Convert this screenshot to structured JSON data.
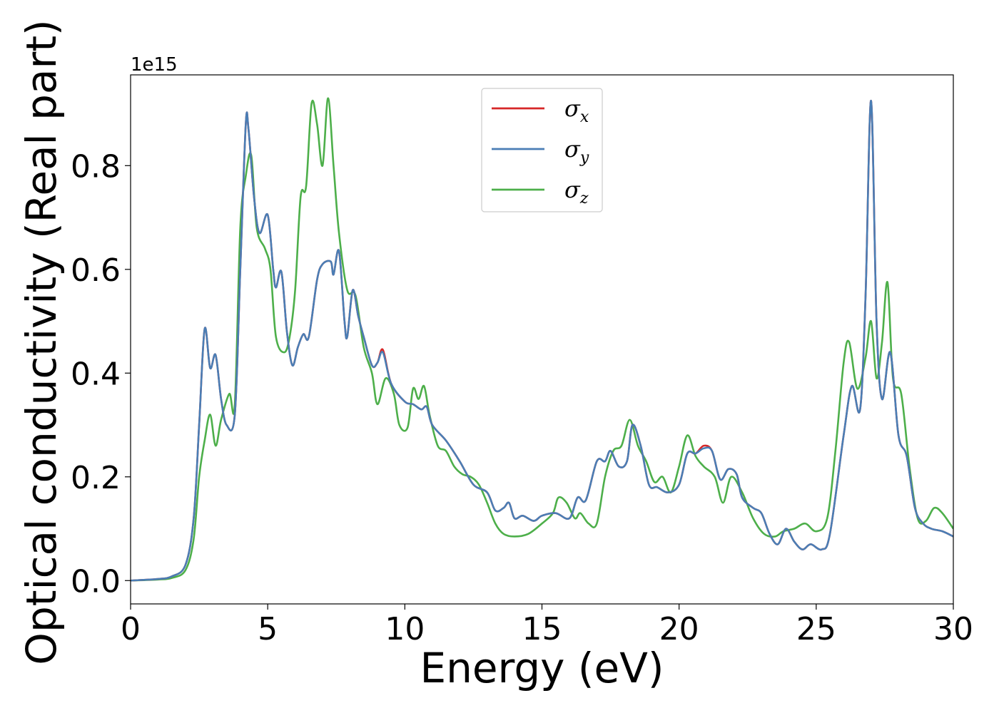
{
  "chart_data": {
    "type": "line",
    "xlabel": "Energy (eV)",
    "ylabel": "Optical conductivity (Real part)",
    "y_offset_text": "1e15",
    "xlim": [
      0,
      30
    ],
    "ylim": [
      -0.045,
      0.975
    ],
    "xticks": [
      0,
      5,
      10,
      15,
      20,
      25,
      30
    ],
    "xtick_labels": [
      "0",
      "5",
      "10",
      "15",
      "20",
      "25",
      "30"
    ],
    "yticks": [
      0.0,
      0.2,
      0.4,
      0.6,
      0.8
    ],
    "ytick_labels": [
      "0.0",
      "0.2",
      "0.4",
      "0.6",
      "0.8"
    ],
    "grid": false,
    "legend_position": "top-center",
    "series": [
      {
        "name": "σx",
        "legend_symbol": "σ",
        "legend_subscript": "x",
        "color": "#d62728",
        "points": [
          [
            0,
            0.0
          ],
          [
            1,
            0.003
          ],
          [
            1.5,
            0.008
          ],
          [
            2,
            0.03
          ],
          [
            2.3,
            0.12
          ],
          [
            2.5,
            0.3
          ],
          [
            2.7,
            0.485
          ],
          [
            2.9,
            0.41
          ],
          [
            3.1,
            0.435
          ],
          [
            3.3,
            0.35
          ],
          [
            3.5,
            0.3
          ],
          [
            3.8,
            0.32
          ],
          [
            4.0,
            0.6
          ],
          [
            4.2,
            0.88
          ],
          [
            4.3,
            0.87
          ],
          [
            4.5,
            0.74
          ],
          [
            4.7,
            0.67
          ],
          [
            5.0,
            0.705
          ],
          [
            5.2,
            0.6
          ],
          [
            5.3,
            0.565
          ],
          [
            5.5,
            0.595
          ],
          [
            5.7,
            0.48
          ],
          [
            5.9,
            0.415
          ],
          [
            6.1,
            0.45
          ],
          [
            6.3,
            0.475
          ],
          [
            6.5,
            0.47
          ],
          [
            6.8,
            0.58
          ],
          [
            7.0,
            0.61
          ],
          [
            7.3,
            0.615
          ],
          [
            7.4,
            0.59
          ],
          [
            7.6,
            0.635
          ],
          [
            7.8,
            0.5
          ],
          [
            7.9,
            0.47
          ],
          [
            8.1,
            0.56
          ],
          [
            8.3,
            0.51
          ],
          [
            8.5,
            0.47
          ],
          [
            8.8,
            0.415
          ],
          [
            9.0,
            0.42
          ],
          [
            9.2,
            0.445
          ],
          [
            9.5,
            0.38
          ],
          [
            10.0,
            0.345
          ],
          [
            10.3,
            0.34
          ],
          [
            10.6,
            0.33
          ],
          [
            10.8,
            0.335
          ],
          [
            11.0,
            0.3
          ],
          [
            11.5,
            0.27
          ],
          [
            12.0,
            0.23
          ],
          [
            12.5,
            0.185
          ],
          [
            13.0,
            0.17
          ],
          [
            13.3,
            0.135
          ],
          [
            13.6,
            0.14
          ],
          [
            13.8,
            0.15
          ],
          [
            14.0,
            0.12
          ],
          [
            14.3,
            0.125
          ],
          [
            14.7,
            0.115
          ],
          [
            15.0,
            0.125
          ],
          [
            15.5,
            0.13
          ],
          [
            16.0,
            0.12
          ],
          [
            16.3,
            0.16
          ],
          [
            16.6,
            0.155
          ],
          [
            17.0,
            0.23
          ],
          [
            17.3,
            0.23
          ],
          [
            17.5,
            0.25
          ],
          [
            17.8,
            0.22
          ],
          [
            18.1,
            0.23
          ],
          [
            18.3,
            0.3
          ],
          [
            18.6,
            0.26
          ],
          [
            18.9,
            0.185
          ],
          [
            19.2,
            0.18
          ],
          [
            19.6,
            0.17
          ],
          [
            20.0,
            0.185
          ],
          [
            20.3,
            0.245
          ],
          [
            20.6,
            0.245
          ],
          [
            20.9,
            0.26
          ],
          [
            21.2,
            0.25
          ],
          [
            21.5,
            0.195
          ],
          [
            21.8,
            0.215
          ],
          [
            22.1,
            0.205
          ],
          [
            22.3,
            0.16
          ],
          [
            22.7,
            0.14
          ],
          [
            23.0,
            0.13
          ],
          [
            23.3,
            0.09
          ],
          [
            23.6,
            0.07
          ],
          [
            23.9,
            0.1
          ],
          [
            24.2,
            0.075
          ],
          [
            24.5,
            0.06
          ],
          [
            24.8,
            0.07
          ],
          [
            25.2,
            0.06
          ],
          [
            25.5,
            0.09
          ],
          [
            26.0,
            0.28
          ],
          [
            26.3,
            0.375
          ],
          [
            26.6,
            0.33
          ],
          [
            26.8,
            0.55
          ],
          [
            27.0,
            0.925
          ],
          [
            27.2,
            0.5
          ],
          [
            27.4,
            0.35
          ],
          [
            27.7,
            0.44
          ],
          [
            28.0,
            0.28
          ],
          [
            28.3,
            0.24
          ],
          [
            28.6,
            0.14
          ],
          [
            28.9,
            0.11
          ],
          [
            29.2,
            0.1
          ],
          [
            29.6,
            0.095
          ],
          [
            30.0,
            0.085
          ]
        ]
      },
      {
        "name": "σy",
        "legend_symbol": "σ",
        "legend_subscript": "y",
        "color": "#4a7eb5",
        "points": [
          [
            0,
            0.0
          ],
          [
            1,
            0.003
          ],
          [
            1.5,
            0.008
          ],
          [
            2,
            0.03
          ],
          [
            2.3,
            0.12
          ],
          [
            2.5,
            0.3
          ],
          [
            2.7,
            0.485
          ],
          [
            2.9,
            0.41
          ],
          [
            3.1,
            0.435
          ],
          [
            3.3,
            0.35
          ],
          [
            3.5,
            0.3
          ],
          [
            3.8,
            0.32
          ],
          [
            4.0,
            0.6
          ],
          [
            4.2,
            0.88
          ],
          [
            4.3,
            0.87
          ],
          [
            4.5,
            0.74
          ],
          [
            4.7,
            0.67
          ],
          [
            5.0,
            0.705
          ],
          [
            5.2,
            0.6
          ],
          [
            5.3,
            0.565
          ],
          [
            5.5,
            0.595
          ],
          [
            5.7,
            0.48
          ],
          [
            5.9,
            0.415
          ],
          [
            6.1,
            0.45
          ],
          [
            6.3,
            0.475
          ],
          [
            6.5,
            0.47
          ],
          [
            6.8,
            0.58
          ],
          [
            7.0,
            0.61
          ],
          [
            7.3,
            0.615
          ],
          [
            7.4,
            0.59
          ],
          [
            7.6,
            0.635
          ],
          [
            7.8,
            0.5
          ],
          [
            7.9,
            0.47
          ],
          [
            8.1,
            0.56
          ],
          [
            8.3,
            0.51
          ],
          [
            8.5,
            0.47
          ],
          [
            8.8,
            0.415
          ],
          [
            9.0,
            0.42
          ],
          [
            9.2,
            0.44
          ],
          [
            9.5,
            0.38
          ],
          [
            10.0,
            0.345
          ],
          [
            10.3,
            0.34
          ],
          [
            10.6,
            0.33
          ],
          [
            10.8,
            0.335
          ],
          [
            11.0,
            0.3
          ],
          [
            11.5,
            0.27
          ],
          [
            12.0,
            0.23
          ],
          [
            12.5,
            0.185
          ],
          [
            13.0,
            0.17
          ],
          [
            13.3,
            0.135
          ],
          [
            13.6,
            0.14
          ],
          [
            13.8,
            0.15
          ],
          [
            14.0,
            0.12
          ],
          [
            14.3,
            0.125
          ],
          [
            14.7,
            0.115
          ],
          [
            15.0,
            0.125
          ],
          [
            15.5,
            0.13
          ],
          [
            16.0,
            0.12
          ],
          [
            16.3,
            0.16
          ],
          [
            16.6,
            0.155
          ],
          [
            17.0,
            0.23
          ],
          [
            17.3,
            0.23
          ],
          [
            17.5,
            0.25
          ],
          [
            17.8,
            0.22
          ],
          [
            18.1,
            0.23
          ],
          [
            18.3,
            0.3
          ],
          [
            18.6,
            0.26
          ],
          [
            18.9,
            0.185
          ],
          [
            19.2,
            0.18
          ],
          [
            19.6,
            0.17
          ],
          [
            20.0,
            0.185
          ],
          [
            20.3,
            0.245
          ],
          [
            20.6,
            0.245
          ],
          [
            20.9,
            0.255
          ],
          [
            21.2,
            0.25
          ],
          [
            21.5,
            0.195
          ],
          [
            21.8,
            0.215
          ],
          [
            22.1,
            0.205
          ],
          [
            22.3,
            0.16
          ],
          [
            22.7,
            0.14
          ],
          [
            23.0,
            0.13
          ],
          [
            23.3,
            0.09
          ],
          [
            23.6,
            0.07
          ],
          [
            23.9,
            0.1
          ],
          [
            24.2,
            0.075
          ],
          [
            24.5,
            0.06
          ],
          [
            24.8,
            0.07
          ],
          [
            25.2,
            0.06
          ],
          [
            25.5,
            0.09
          ],
          [
            26.0,
            0.28
          ],
          [
            26.3,
            0.375
          ],
          [
            26.6,
            0.33
          ],
          [
            26.8,
            0.55
          ],
          [
            27.0,
            0.925
          ],
          [
            27.2,
            0.5
          ],
          [
            27.4,
            0.35
          ],
          [
            27.7,
            0.44
          ],
          [
            28.0,
            0.28
          ],
          [
            28.3,
            0.24
          ],
          [
            28.6,
            0.14
          ],
          [
            28.9,
            0.11
          ],
          [
            29.2,
            0.1
          ],
          [
            29.6,
            0.095
          ],
          [
            30.0,
            0.085
          ]
        ]
      },
      {
        "name": "σz",
        "legend_symbol": "σ",
        "legend_subscript": "z",
        "color": "#4daf4a",
        "points": [
          [
            0,
            0.0
          ],
          [
            1,
            0.002
          ],
          [
            1.5,
            0.005
          ],
          [
            2,
            0.02
          ],
          [
            2.3,
            0.08
          ],
          [
            2.5,
            0.2
          ],
          [
            2.7,
            0.27
          ],
          [
            2.9,
            0.32
          ],
          [
            3.1,
            0.26
          ],
          [
            3.3,
            0.31
          ],
          [
            3.6,
            0.36
          ],
          [
            3.8,
            0.34
          ],
          [
            4.0,
            0.68
          ],
          [
            4.2,
            0.78
          ],
          [
            4.4,
            0.82
          ],
          [
            4.6,
            0.68
          ],
          [
            4.9,
            0.64
          ],
          [
            5.1,
            0.6
          ],
          [
            5.3,
            0.47
          ],
          [
            5.6,
            0.44
          ],
          [
            5.8,
            0.47
          ],
          [
            6.0,
            0.56
          ],
          [
            6.2,
            0.74
          ],
          [
            6.4,
            0.76
          ],
          [
            6.6,
            0.92
          ],
          [
            6.8,
            0.88
          ],
          [
            7.0,
            0.8
          ],
          [
            7.2,
            0.93
          ],
          [
            7.4,
            0.8
          ],
          [
            7.6,
            0.67
          ],
          [
            7.9,
            0.56
          ],
          [
            8.2,
            0.55
          ],
          [
            8.5,
            0.45
          ],
          [
            8.8,
            0.4
          ],
          [
            9.0,
            0.34
          ],
          [
            9.3,
            0.39
          ],
          [
            9.6,
            0.36
          ],
          [
            9.8,
            0.3
          ],
          [
            10.1,
            0.295
          ],
          [
            10.3,
            0.37
          ],
          [
            10.5,
            0.35
          ],
          [
            10.7,
            0.375
          ],
          [
            10.9,
            0.32
          ],
          [
            11.2,
            0.26
          ],
          [
            11.5,
            0.25
          ],
          [
            11.8,
            0.22
          ],
          [
            12.1,
            0.205
          ],
          [
            12.4,
            0.2
          ],
          [
            12.7,
            0.185
          ],
          [
            13.0,
            0.15
          ],
          [
            13.3,
            0.11
          ],
          [
            13.6,
            0.09
          ],
          [
            14.0,
            0.085
          ],
          [
            14.5,
            0.09
          ],
          [
            15.0,
            0.11
          ],
          [
            15.4,
            0.13
          ],
          [
            15.6,
            0.16
          ],
          [
            15.9,
            0.15
          ],
          [
            16.2,
            0.12
          ],
          [
            16.4,
            0.13
          ],
          [
            16.7,
            0.11
          ],
          [
            17.0,
            0.11
          ],
          [
            17.3,
            0.2
          ],
          [
            17.6,
            0.25
          ],
          [
            17.9,
            0.26
          ],
          [
            18.2,
            0.31
          ],
          [
            18.5,
            0.26
          ],
          [
            18.8,
            0.23
          ],
          [
            19.1,
            0.19
          ],
          [
            19.4,
            0.2
          ],
          [
            19.7,
            0.17
          ],
          [
            20.0,
            0.22
          ],
          [
            20.3,
            0.28
          ],
          [
            20.6,
            0.24
          ],
          [
            20.9,
            0.22
          ],
          [
            21.3,
            0.2
          ],
          [
            21.6,
            0.15
          ],
          [
            21.9,
            0.2
          ],
          [
            22.3,
            0.17
          ],
          [
            22.7,
            0.12
          ],
          [
            23.1,
            0.09
          ],
          [
            23.5,
            0.085
          ],
          [
            23.8,
            0.095
          ],
          [
            24.2,
            0.1
          ],
          [
            24.6,
            0.11
          ],
          [
            25.0,
            0.095
          ],
          [
            25.4,
            0.12
          ],
          [
            25.7,
            0.25
          ],
          [
            26.0,
            0.42
          ],
          [
            26.2,
            0.46
          ],
          [
            26.5,
            0.37
          ],
          [
            26.8,
            0.43
          ],
          [
            27.0,
            0.5
          ],
          [
            27.2,
            0.39
          ],
          [
            27.4,
            0.46
          ],
          [
            27.6,
            0.575
          ],
          [
            27.8,
            0.39
          ],
          [
            28.1,
            0.36
          ],
          [
            28.4,
            0.22
          ],
          [
            28.7,
            0.12
          ],
          [
            29.0,
            0.115
          ],
          [
            29.3,
            0.14
          ],
          [
            29.6,
            0.13
          ],
          [
            30.0,
            0.1
          ]
        ]
      }
    ]
  }
}
